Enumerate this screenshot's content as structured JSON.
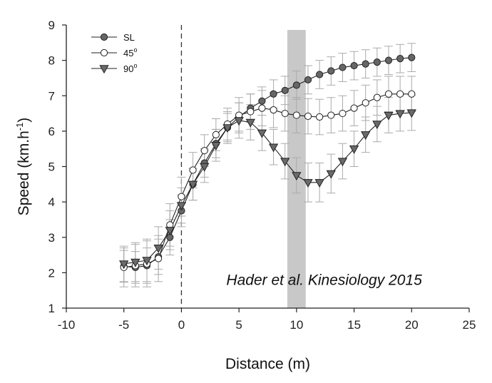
{
  "chart_data": {
    "type": "line",
    "xlabel": "Distance (m)",
    "ylabel_main": "Speed (km.h",
    "ylabel_sup": "-1",
    "ylabel_close": ")",
    "xlim": [
      -10,
      25
    ],
    "ylim": [
      1,
      9
    ],
    "x_ticks": [
      -10,
      -5,
      0,
      5,
      10,
      15,
      20,
      25
    ],
    "y_ticks": [
      1,
      2,
      3,
      4,
      5,
      6,
      7,
      8,
      9
    ],
    "reference_line_x": 0,
    "shaded_band_x": [
      9.2,
      10.8
    ],
    "annotation": "Hader et al. Kinesiology 2015",
    "x": [
      -5,
      -4,
      -3,
      -2,
      -1,
      0,
      1,
      2,
      3,
      4,
      5,
      6,
      7,
      8,
      9,
      10,
      11,
      12,
      13,
      14,
      15,
      16,
      17,
      18,
      19,
      20
    ],
    "series": [
      {
        "name": "SL",
        "marker": "circle-filled",
        "color": "#666666",
        "values": [
          2.18,
          2.15,
          2.2,
          2.45,
          3.0,
          3.75,
          4.5,
          5.1,
          5.65,
          6.1,
          6.4,
          6.65,
          6.85,
          7.05,
          7.15,
          7.3,
          7.45,
          7.6,
          7.7,
          7.8,
          7.85,
          7.9,
          7.95,
          8.0,
          8.05,
          8.08
        ],
        "errors": [
          0.45,
          0.45,
          0.5,
          0.5,
          0.5,
          0.45,
          0.45,
          0.4,
          0.4,
          0.4,
          0.4,
          0.4,
          0.4,
          0.4,
          0.4,
          0.4,
          0.4,
          0.4,
          0.4,
          0.4,
          0.4,
          0.4,
          0.4,
          0.4,
          0.4,
          0.4
        ]
      },
      {
        "name": "45",
        "name_sup": "o",
        "marker": "circle-open",
        "color": "#ffffff",
        "values": [
          2.15,
          2.2,
          2.25,
          2.4,
          3.35,
          4.15,
          4.9,
          5.45,
          5.9,
          6.2,
          6.45,
          6.55,
          6.65,
          6.6,
          6.5,
          6.45,
          6.42,
          6.4,
          6.45,
          6.5,
          6.65,
          6.8,
          6.95,
          7.05,
          7.05,
          7.05
        ],
        "errors": [
          0.55,
          0.6,
          0.65,
          0.65,
          0.6,
          0.55,
          0.5,
          0.45,
          0.45,
          0.45,
          0.5,
          0.5,
          0.5,
          0.5,
          0.5,
          0.5,
          0.5,
          0.5,
          0.5,
          0.5,
          0.5,
          0.5,
          0.5,
          0.5,
          0.5,
          0.5
        ]
      },
      {
        "name": "90",
        "name_sup": "o",
        "marker": "triangle-down-filled",
        "color": "#6a6a6a",
        "values": [
          2.25,
          2.3,
          2.35,
          2.7,
          3.2,
          3.9,
          4.5,
          5.0,
          5.6,
          6.1,
          6.3,
          6.25,
          5.95,
          5.55,
          5.15,
          4.75,
          4.55,
          4.55,
          4.8,
          5.15,
          5.5,
          5.9,
          6.2,
          6.45,
          6.5,
          6.52
        ],
        "errors": [
          0.5,
          0.55,
          0.6,
          0.6,
          0.55,
          0.5,
          0.45,
          0.45,
          0.45,
          0.45,
          0.5,
          0.5,
          0.5,
          0.5,
          0.5,
          0.5,
          0.55,
          0.55,
          0.55,
          0.5,
          0.5,
          0.5,
          0.5,
          0.5,
          0.5,
          0.5
        ]
      }
    ]
  }
}
